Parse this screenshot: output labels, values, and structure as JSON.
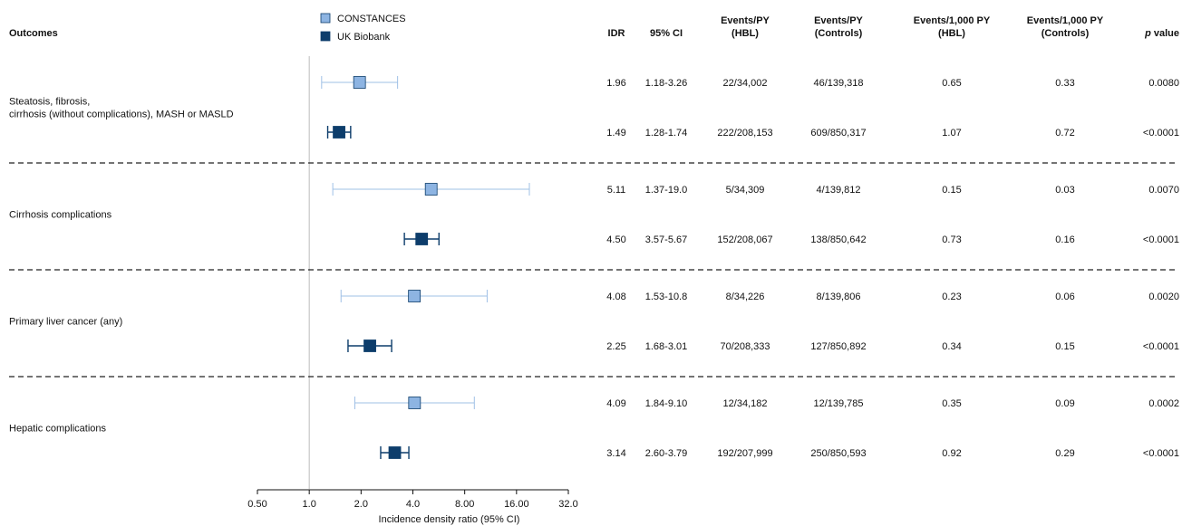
{
  "header": {
    "outcomes": "Outcomes",
    "idr": "IDR",
    "ci": "95% CI",
    "events_py_hbl": [
      "Events/PY",
      "(HBL)"
    ],
    "events_py_controls": [
      "Events/PY",
      "(Controls)"
    ],
    "rate_hbl": [
      "Events/1,000 PY",
      "(HBL)"
    ],
    "rate_controls": [
      "Events/1,000 PY",
      "(Controls)"
    ],
    "p_value": "p value"
  },
  "legend": [
    {
      "name": "CONSTANCES",
      "color": "#8db4e2"
    },
    {
      "name": "UK Biobank",
      "color": "#0d3d6b"
    }
  ],
  "colors": {
    "constances": "#8db4e2",
    "ukb": "#0d3d6b",
    "ci_constances": "#9fc0e6",
    "ci_ukb": "#0d3d6b",
    "separator": "#222222"
  },
  "chart_data": {
    "type": "forest",
    "xlabel": "Incidence density ratio (95% CI)",
    "x_scale": "log2",
    "xlim": [
      0.5,
      32.0
    ],
    "x_ticks": [
      0.5,
      1.0,
      2.0,
      4.0,
      8.0,
      16.0,
      32.0
    ],
    "x_tick_labels": [
      "0.50",
      "1.0",
      "2.0",
      "4.0",
      "8.00",
      "16.00",
      "32.0"
    ],
    "reference_line": 1.0,
    "groups": [
      {
        "label": [
          "Steatosis, fibrosis,",
          "cirrhosis (without complications), MASH or MASLD"
        ],
        "rows": [
          {
            "cohort": "CONSTANCES",
            "idr": 1.96,
            "lo": 1.18,
            "hi": 3.26,
            "idr_text": "1.96",
            "ci_text": "1.18-3.26",
            "events_hbl": "22/34,002",
            "events_controls": "46/139,318",
            "rate_hbl": "0.65",
            "rate_controls": "0.33",
            "p": "0.0080"
          },
          {
            "cohort": "UK Biobank",
            "idr": 1.49,
            "lo": 1.28,
            "hi": 1.74,
            "idr_text": "1.49",
            "ci_text": "1.28-1.74",
            "events_hbl": "222/208,153",
            "events_controls": "609/850,317",
            "rate_hbl": "1.07",
            "rate_controls": "0.72",
            "p": "<0.0001"
          }
        ]
      },
      {
        "label": [
          "Cirrhosis complications"
        ],
        "rows": [
          {
            "cohort": "CONSTANCES",
            "idr": 5.11,
            "lo": 1.37,
            "hi": 19.0,
            "idr_text": "5.11",
            "ci_text": "1.37-19.0",
            "events_hbl": "5/34,309",
            "events_controls": "4/139,812",
            "rate_hbl": "0.15",
            "rate_controls": "0.03",
            "p": "0.0070"
          },
          {
            "cohort": "UK Biobank",
            "idr": 4.5,
            "lo": 3.57,
            "hi": 5.67,
            "idr_text": "4.50",
            "ci_text": "3.57-5.67",
            "events_hbl": "152/208,067",
            "events_controls": "138/850,642",
            "rate_hbl": "0.73",
            "rate_controls": "0.16",
            "p": "<0.0001"
          }
        ]
      },
      {
        "label": [
          "Primary liver cancer (any)"
        ],
        "rows": [
          {
            "cohort": "CONSTANCES",
            "idr": 4.08,
            "lo": 1.53,
            "hi": 10.8,
            "idr_text": "4.08",
            "ci_text": "1.53-10.8",
            "events_hbl": "8/34,226",
            "events_controls": "8/139,806",
            "rate_hbl": "0.23",
            "rate_controls": "0.06",
            "p": "0.0020"
          },
          {
            "cohort": "UK Biobank",
            "idr": 2.25,
            "lo": 1.68,
            "hi": 3.01,
            "idr_text": "2.25",
            "ci_text": "1.68-3.01",
            "events_hbl": "70/208,333",
            "events_controls": "127/850,892",
            "rate_hbl": "0.34",
            "rate_controls": "0.15",
            "p": "<0.0001"
          }
        ]
      },
      {
        "label": [
          "Hepatic complications"
        ],
        "rows": [
          {
            "cohort": "CONSTANCES",
            "idr": 4.09,
            "lo": 1.84,
            "hi": 9.1,
            "idr_text": "4.09",
            "ci_text": "1.84-9.10",
            "events_hbl": "12/34,182",
            "events_controls": "12/139,785",
            "rate_hbl": "0.35",
            "rate_controls": "0.09",
            "p": "0.0002"
          },
          {
            "cohort": "UK Biobank",
            "idr": 3.14,
            "lo": 2.6,
            "hi": 3.79,
            "idr_text": "3.14",
            "ci_text": "2.60-3.79",
            "events_hbl": "192/207,999",
            "events_controls": "250/850,593",
            "rate_hbl": "0.92",
            "rate_controls": "0.29",
            "p": "<0.0001"
          }
        ]
      }
    ]
  }
}
